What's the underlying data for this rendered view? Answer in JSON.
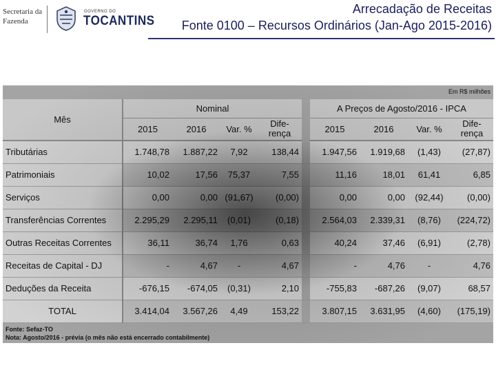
{
  "header": {
    "secretaria_line1": "Secretaria da",
    "secretaria_line2": "Fazenda",
    "gov_small": "GOVERNO DO",
    "gov_big": "TOCANTINS",
    "title_line1": "Arrecadação de Receitas",
    "title_line2": "Fonte 0100 – Recursos Ordinários (Jan-Ago 2015-2016)"
  },
  "table": {
    "unit_note": "Em R$ milhões",
    "col_mes": "Mês",
    "group_nominal": "Nominal",
    "group_ipca": "A Preços de Agosto/2016 - IPCA",
    "sub_2015": "2015",
    "sub_2016": "2016",
    "sub_var": "Var. %",
    "sub_dif_1": "Dife-",
    "sub_dif_2": "rença",
    "rows": [
      {
        "label": "Tributárias",
        "n2015": "1.748,78",
        "n2016": "1.887,22",
        "nvar": "7,92",
        "ndif": "138,44",
        "r2015": "1.947,56",
        "r2016": "1.919,68",
        "rvar": "(1,43)",
        "rdif": "(27,87)"
      },
      {
        "label": "Patrimoniais",
        "n2015": "10,02",
        "n2016": "17,56",
        "nvar": "75,37",
        "ndif": "7,55",
        "r2015": "11,16",
        "r2016": "18,01",
        "rvar": "61,41",
        "rdif": "6,85"
      },
      {
        "label": "Serviços",
        "n2015": "0,00",
        "n2016": "0,00",
        "nvar": "(91,67)",
        "ndif": "(0,00)",
        "r2015": "0,00",
        "r2016": "0,00",
        "rvar": "(92,44)",
        "rdif": "(0,00)"
      },
      {
        "label": "Transferências Correntes",
        "n2015": "2.295,29",
        "n2016": "2.295,11",
        "nvar": "(0,01)",
        "ndif": "(0,18)",
        "r2015": "2.564,03",
        "r2016": "2.339,31",
        "rvar": "(8,76)",
        "rdif": "(224,72)"
      },
      {
        "label": "Outras Receitas Correntes",
        "n2015": "36,11",
        "n2016": "36,74",
        "nvar": "1,76",
        "ndif": "0,63",
        "r2015": "40,24",
        "r2016": "37,46",
        "rvar": "(6,91)",
        "rdif": "(2,78)"
      },
      {
        "label": "Receitas de Capital - DJ",
        "n2015": "-",
        "n2016": "4,67",
        "nvar": "-",
        "ndif": "4,67",
        "r2015": "-",
        "r2016": "4,76",
        "rvar": "-",
        "rdif": "4,76"
      },
      {
        "label": "Deduções da Receita",
        "n2015": "-676,15",
        "n2016": "-674,05",
        "nvar": "(0,31)",
        "ndif": "2,10",
        "r2015": "-755,83",
        "r2016": "-687,26",
        "rvar": "(9,07)",
        "rdif": "68,57"
      },
      {
        "label": "TOTAL",
        "n2015": "3.414,04",
        "n2016": "3.567,26",
        "nvar": "4,49",
        "ndif": "153,22",
        "r2015": "3.807,15",
        "r2016": "3.631,95",
        "rvar": "(4,60)",
        "rdif": "(175,19)"
      }
    ],
    "fonte": "Fonte: Sefaz-TO",
    "nota": "Nota: Agosto/2016 - prévia (o mês não está encerrado contabilmente)"
  }
}
